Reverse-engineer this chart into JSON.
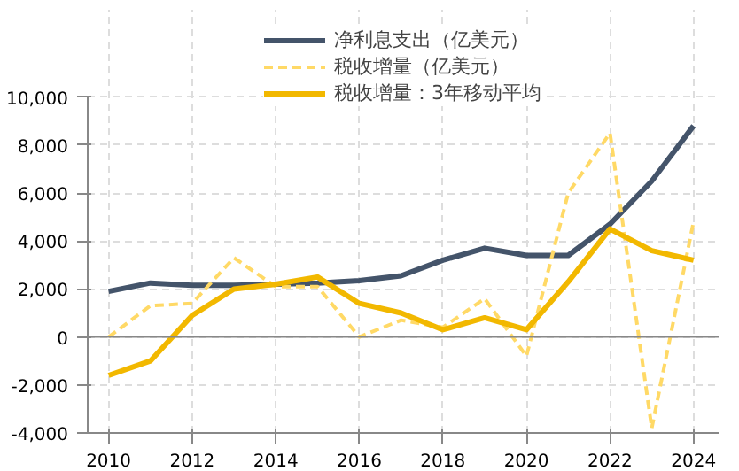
{
  "chart_data": {
    "type": "line",
    "x": [
      2010,
      2011,
      2012,
      2013,
      2014,
      2015,
      2016,
      2017,
      2018,
      2019,
      2020,
      2021,
      2022,
      2023,
      2024
    ],
    "series": [
      {
        "name": "净利息支出（亿美元）",
        "color": "#44546a",
        "values": [
          1900,
          2250,
          2150,
          2150,
          2200,
          2250,
          2350,
          2550,
          3200,
          3700,
          3400,
          3400,
          4700,
          6500,
          8800
        ]
      },
      {
        "name": "税收增量（亿美元）",
        "color": "#ffd966",
        "line_style": "dashed",
        "values": [
          0,
          1300,
          1400,
          3300,
          2100,
          2100,
          0,
          700,
          400,
          1600,
          -800,
          6000,
          8500,
          -3800,
          4800
        ]
      },
      {
        "name": "税收增量：3年移动平均",
        "color": "#f2b800",
        "values": [
          -1600,
          -1000,
          900,
          2000,
          2200,
          2500,
          1400,
          1000,
          300,
          800,
          300,
          2300,
          4500,
          3600,
          3200
        ]
      }
    ],
    "xlim": [
      2009.5,
      2024.6
    ],
    "xticks": [
      2010,
      2012,
      2014,
      2016,
      2018,
      2020,
      2022,
      2024
    ],
    "ylim": [
      -4000,
      10000
    ],
    "yticks": [
      {
        "value": -4000,
        "label": "-4,000"
      },
      {
        "value": -2000,
        "label": "-2,000"
      },
      0,
      {
        "value": 2000,
        "label": "2,000"
      },
      {
        "value": 4000,
        "label": "4,000"
      },
      {
        "value": 6000,
        "label": "6,000"
      },
      {
        "value": 8000,
        "label": "8,000"
      },
      {
        "value": 10000,
        "label": "10,000"
      }
    ],
    "grid": true,
    "legend": "top",
    "line_style": "solid",
    "marker": "none"
  }
}
